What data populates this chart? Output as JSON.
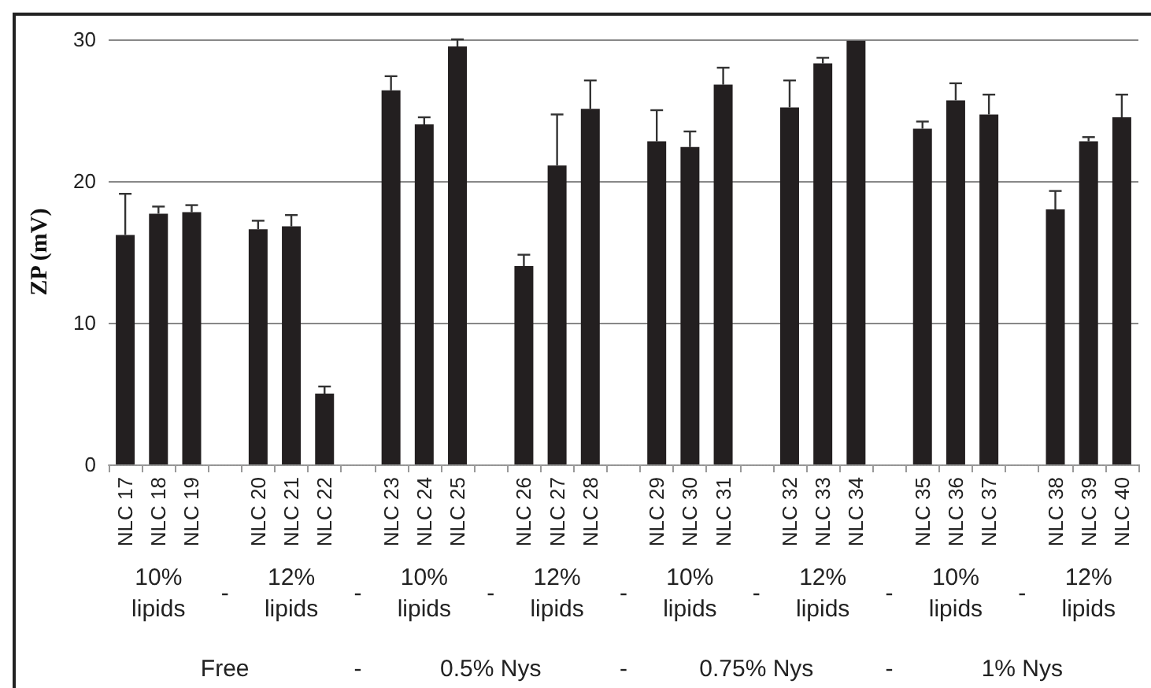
{
  "chart_data": {
    "type": "bar",
    "ylabel": "ZP (mV)",
    "categories": [
      "NLC 17",
      "NLC 18",
      "NLC 19",
      null,
      "NLC 20",
      "NLC 21",
      "NLC 22",
      null,
      "NLC 23",
      "NLC 24",
      "NLC 25",
      null,
      "NLC 26",
      "NLC 27",
      "NLC 28",
      null,
      "NLC 29",
      "NLC 30",
      "NLC 31",
      null,
      "NLC 32",
      "NLC 33",
      "NLC 34",
      null,
      "NLC 35",
      "NLC 36",
      "NLC 37",
      null,
      "NLC 38",
      "NLC 39",
      "NLC 40"
    ],
    "series": [
      {
        "color": "#231f20",
        "values": [
          16.2,
          17.7,
          17.8,
          null,
          16.6,
          16.8,
          5.0,
          null,
          26.4,
          24.0,
          29.5,
          null,
          14.0,
          21.1,
          25.1,
          null,
          22.8,
          22.4,
          26.8,
          null,
          25.2,
          28.3,
          29.9,
          null,
          23.7,
          25.7,
          24.7,
          null,
          18.0,
          22.8,
          24.5
        ],
        "errors": [
          [
            16.2,
            19.1
          ],
          [
            17.7,
            18.2
          ],
          [
            17.8,
            18.3
          ],
          null,
          [
            16.6,
            17.2
          ],
          [
            16.8,
            17.6
          ],
          [
            5.0,
            5.5
          ],
          null,
          [
            26.4,
            27.4
          ],
          [
            24.0,
            24.5
          ],
          [
            29.5,
            30.0
          ],
          null,
          [
            14.0,
            14.8
          ],
          [
            21.1,
            24.7
          ],
          [
            25.1,
            27.1
          ],
          null,
          [
            22.8,
            25.0
          ],
          [
            22.4,
            23.5
          ],
          [
            26.8,
            28.0
          ],
          null,
          [
            25.2,
            27.1
          ],
          [
            28.3,
            28.7
          ],
          null,
          null,
          [
            23.7,
            24.2
          ],
          [
            25.7,
            26.9
          ],
          [
            24.7,
            26.1
          ],
          null,
          [
            18.0,
            19.3
          ],
          [
            22.8,
            23.1
          ],
          [
            24.5,
            26.1
          ]
        ]
      }
    ],
    "ylim": [
      0,
      30
    ],
    "yticks": [
      0,
      10,
      20,
      30
    ],
    "grid": "y",
    "annotations": [
      "10%\nlipids",
      "-",
      "12%\nlipids",
      "-",
      "10%\nlipids",
      "-",
      "12%\nlipids",
      "-",
      "10%\nlipids",
      "-",
      "12%\nlipids",
      "-",
      "10%\nlipids",
      "-",
      "12%\nlipids",
      "Free",
      "-",
      "0.5% Nys",
      "-",
      "0.75% Nys",
      "-",
      "1% Nys"
    ]
  }
}
